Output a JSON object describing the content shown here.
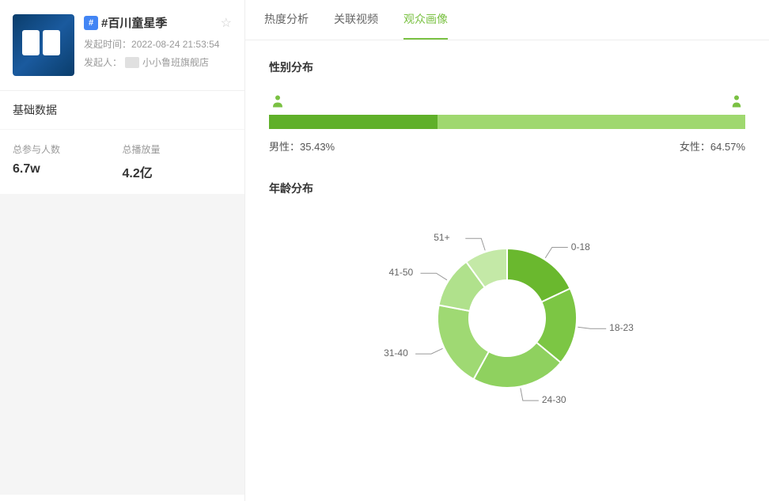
{
  "topic": {
    "badge_char": "#",
    "title": "#百川童星季",
    "launch_time_label": "发起时间：",
    "launch_time_value": "2022-08-24 21:53:54",
    "initiator_label": "发起人：",
    "initiator_name": "小小鲁班旗舰店"
  },
  "basic": {
    "section_label": "基础数据",
    "participants_label": "总参与人数",
    "participants_value": "6.7w",
    "plays_label": "总播放量",
    "plays_value": "4.2亿"
  },
  "tabs": {
    "t1": "热度分析",
    "t2": "关联视频",
    "t3": "观众画像"
  },
  "gender": {
    "section_title": "性别分布",
    "male_label": "男性：",
    "male_pct_text": "35.43%",
    "male_pct": 35.43,
    "female_label": "女性：",
    "female_pct_text": "64.57%",
    "female_pct": 64.57,
    "bar_male_color": "#5fb029",
    "bar_female_color": "#9fd86f",
    "icon_color": "#7ac143"
  },
  "age": {
    "section_title": "年龄分布",
    "segments": [
      {
        "label": "0-18",
        "value": 18,
        "color": "#6ab82e"
      },
      {
        "label": "18-23",
        "value": 18,
        "color": "#7cc644"
      },
      {
        "label": "24-30",
        "value": 22,
        "color": "#8fd15f"
      },
      {
        "label": "31-40",
        "value": 20,
        "color": "#9fd973"
      },
      {
        "label": "41-50",
        "value": 12,
        "color": "#b0e18c"
      },
      {
        "label": "51+",
        "value": 10,
        "color": "#c4e9a7"
      }
    ],
    "donut_inner_radius": 48,
    "donut_outer_radius": 88
  }
}
